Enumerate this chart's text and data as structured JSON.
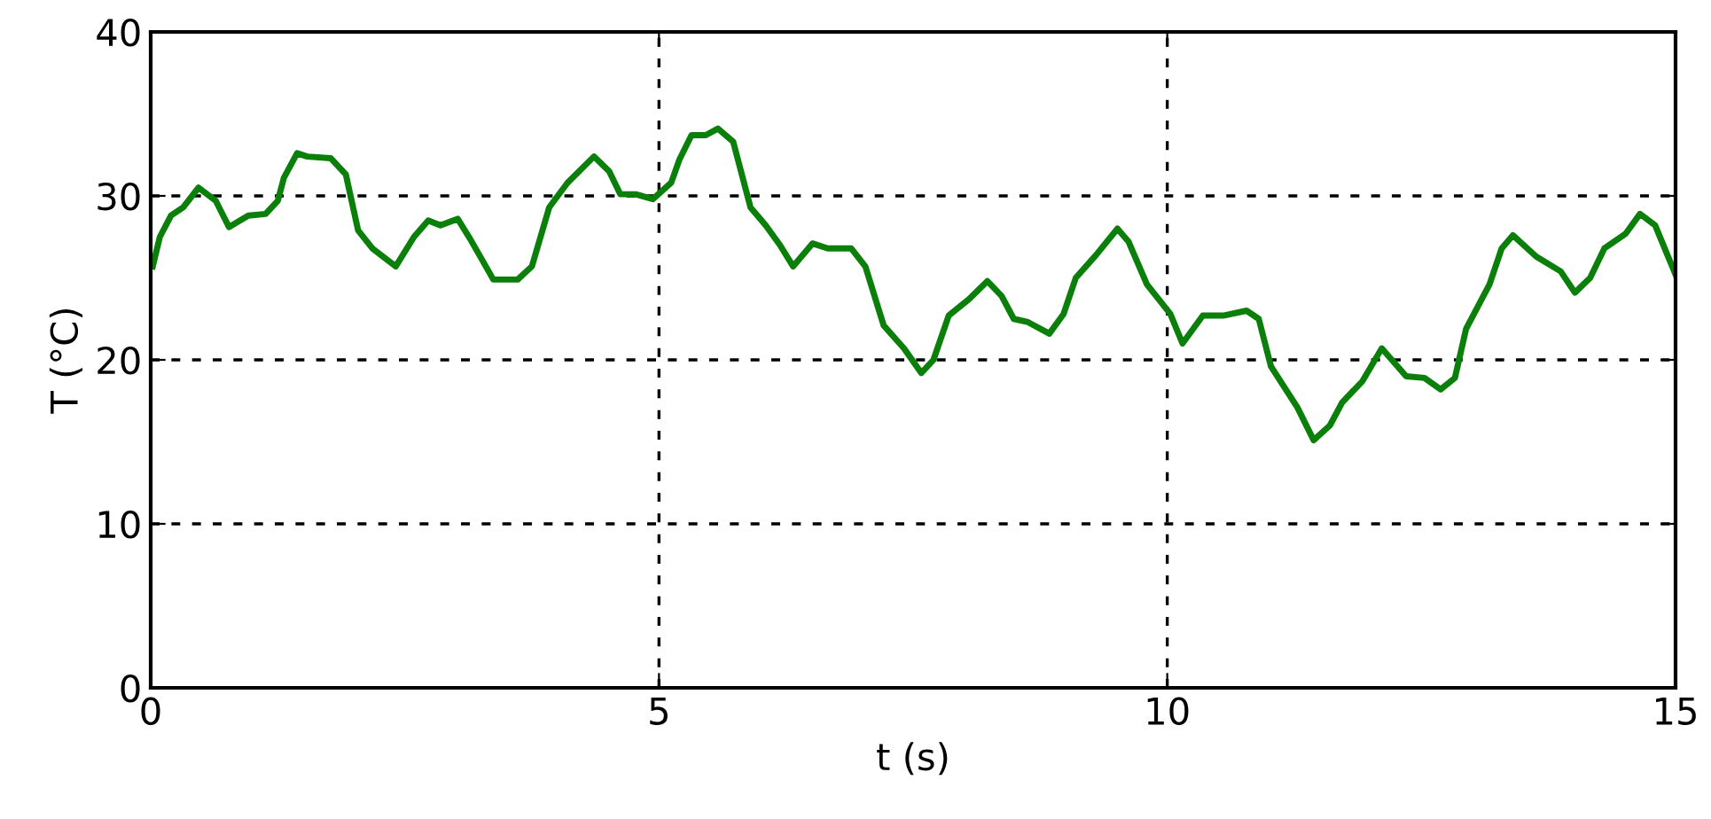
{
  "chart_data": {
    "type": "line",
    "xlabel": "t (s)",
    "ylabel": "T (°C)",
    "xlim": [
      0,
      15
    ],
    "ylim": [
      0,
      40
    ],
    "xticks": [
      0,
      5,
      10,
      15
    ],
    "yticks": [
      0,
      10,
      20,
      30,
      40
    ],
    "grid": true,
    "line_style": "solid",
    "series": [
      {
        "color": "#0a7f0a",
        "x": [
          0.02,
          0.09,
          0.2,
          0.32,
          0.47,
          0.64,
          0.77,
          0.96,
          1.13,
          1.25,
          1.31,
          1.44,
          1.54,
          1.77,
          1.92,
          2.04,
          2.18,
          2.41,
          2.59,
          2.73,
          2.85,
          3.02,
          3.14,
          3.26,
          3.37,
          3.61,
          3.75,
          3.92,
          4.1,
          4.36,
          4.51,
          4.62,
          4.77,
          4.94,
          5.12,
          5.2,
          5.32,
          5.46,
          5.58,
          5.73,
          5.9,
          6.05,
          6.19,
          6.32,
          6.51,
          6.66,
          6.89,
          7.03,
          7.21,
          7.41,
          7.58,
          7.7,
          7.85,
          8.05,
          8.23,
          8.37,
          8.49,
          8.63,
          8.84,
          8.98,
          9.1,
          9.3,
          9.51,
          9.62,
          9.8,
          10.03,
          10.15,
          10.35,
          10.55,
          10.78,
          10.9,
          11.02,
          11.28,
          11.44,
          11.6,
          11.72,
          11.92,
          12.11,
          12.35,
          12.53,
          12.69,
          12.83,
          12.94,
          13.17,
          13.29,
          13.4,
          13.63,
          13.87,
          14.01,
          14.16,
          14.3,
          14.51,
          14.65,
          14.8,
          15.0
        ],
        "values": [
          25.7,
          27.5,
          28.8,
          29.3,
          30.5,
          29.7,
          28.1,
          28.8,
          28.9,
          29.7,
          31.1,
          32.6,
          32.4,
          32.3,
          31.3,
          27.9,
          26.8,
          25.7,
          27.5,
          28.5,
          28.2,
          28.6,
          27.4,
          26.1,
          24.9,
          24.9,
          25.7,
          29.3,
          30.8,
          32.4,
          31.5,
          30.1,
          30.1,
          29.8,
          30.8,
          32.2,
          33.7,
          33.7,
          34.1,
          33.3,
          29.3,
          28.2,
          27.0,
          25.7,
          27.1,
          26.8,
          26.8,
          25.7,
          22.1,
          20.7,
          19.2,
          20.0,
          22.7,
          23.7,
          24.8,
          23.9,
          22.5,
          22.3,
          21.6,
          22.8,
          25.0,
          26.4,
          28.0,
          27.2,
          24.6,
          22.8,
          21.0,
          22.7,
          22.7,
          23.0,
          22.5,
          19.6,
          17.1,
          15.1,
          16.0,
          17.4,
          18.7,
          20.7,
          19.0,
          18.9,
          18.2,
          18.9,
          21.9,
          24.6,
          26.8,
          27.6,
          26.3,
          25.4,
          24.1,
          25.0,
          26.8,
          27.7,
          28.9,
          28.2,
          25.2
        ]
      }
    ]
  }
}
